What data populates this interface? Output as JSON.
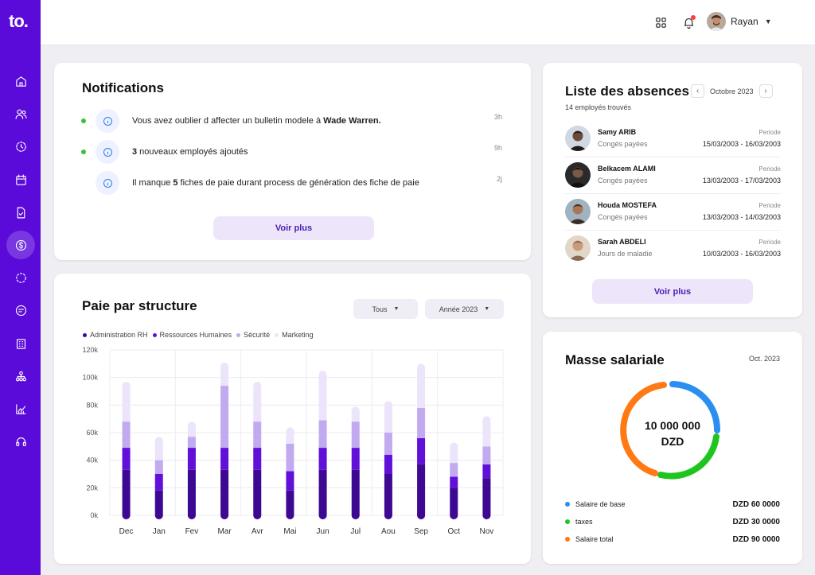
{
  "app": {
    "logo": "to."
  },
  "topbar": {
    "user_name": "Rayan"
  },
  "notifications": {
    "title": "Notifications",
    "items": [
      {
        "prefix": "Vous avez oublier d affecter un bulletin modele à ",
        "bold": "Wade Warren.",
        "suffix": "",
        "time": "3h",
        "unread": true
      },
      {
        "prefix": "",
        "bold": "3",
        "suffix": " nouveaux employés ajoutés",
        "time": "9h",
        "unread": true
      },
      {
        "prefix": "Il manque ",
        "bold": "5",
        "suffix": " fiches de paie durant process de génération des fiche de paie",
        "time": "2j",
        "unread": false
      }
    ],
    "button": "Voir plus"
  },
  "absences": {
    "title": "Liste des absences",
    "month": "Octobre 2023",
    "count_text": "14 employés trouvés",
    "period_label": "Periode",
    "items": [
      {
        "name": "Samy ARIB",
        "type": "Congés payées",
        "dates": "15/03/2003 - 16/03/2003"
      },
      {
        "name": "Belkacem ALAMI",
        "type": "Congés payées",
        "dates": "13/03/2003 - 17/03/2003"
      },
      {
        "name": "Houda  MOSTEFA",
        "type": "Congés payées",
        "dates": "13/03/2003 - 14/03/2003"
      },
      {
        "name": "Sarah ABDELI",
        "type": "Jours de maladie",
        "dates": "10/03/2003 - 16/03/2003"
      }
    ],
    "button": "Voir plus"
  },
  "paie": {
    "title": "Paie par structure",
    "filter_all": "Tous",
    "filter_year": "Année 2023"
  },
  "masse": {
    "title": "Masse salariale",
    "date": "Oct. 2023",
    "total_line1": "10 000 000",
    "total_line2": "DZD",
    "items": [
      {
        "label": "Salaire de base",
        "value": "DZD  60 0000",
        "color": "#2a8ff0"
      },
      {
        "label": "taxes",
        "value": "DZD  30 0000",
        "color": "#1ec51e"
      },
      {
        "label": "Salaire total",
        "value": "DZD  90 0000",
        "color": "#ff7a14"
      }
    ]
  },
  "chart_data": {
    "type": "bar",
    "stacked": true,
    "categories": [
      "Dec",
      "Jan",
      "Fev",
      "Mar",
      "Avr",
      "Mai",
      "Jun",
      "Jul",
      "Aou",
      "Sep",
      "Oct",
      "Nov"
    ],
    "series": [
      {
        "name": "Administration RH",
        "color": "#3d0892",
        "values": [
          33,
          18,
          33,
          33,
          33,
          18,
          33,
          33,
          30,
          37,
          20,
          27
        ]
      },
      {
        "name": "Ressources Humaines",
        "color": "#6110d9",
        "values": [
          16,
          12,
          16,
          16,
          16,
          14,
          16,
          16,
          14,
          19,
          8,
          10
        ]
      },
      {
        "name": "Sécurité",
        "color": "#c1aaef",
        "values": [
          19,
          10,
          8,
          45,
          19,
          20,
          20,
          19,
          16,
          22,
          10,
          13
        ]
      },
      {
        "name": "Marketing",
        "color": "#ebe4fb",
        "values": [
          26,
          14,
          8,
          14,
          26,
          9,
          33,
          8,
          20,
          29,
          12,
          19
        ]
      }
    ],
    "yticks": [
      "0k",
      "20k",
      "40k",
      "60k",
      "80k",
      "100k",
      "120k"
    ],
    "ylim": [
      0,
      120
    ],
    "grid": true,
    "legend": "top-left"
  }
}
